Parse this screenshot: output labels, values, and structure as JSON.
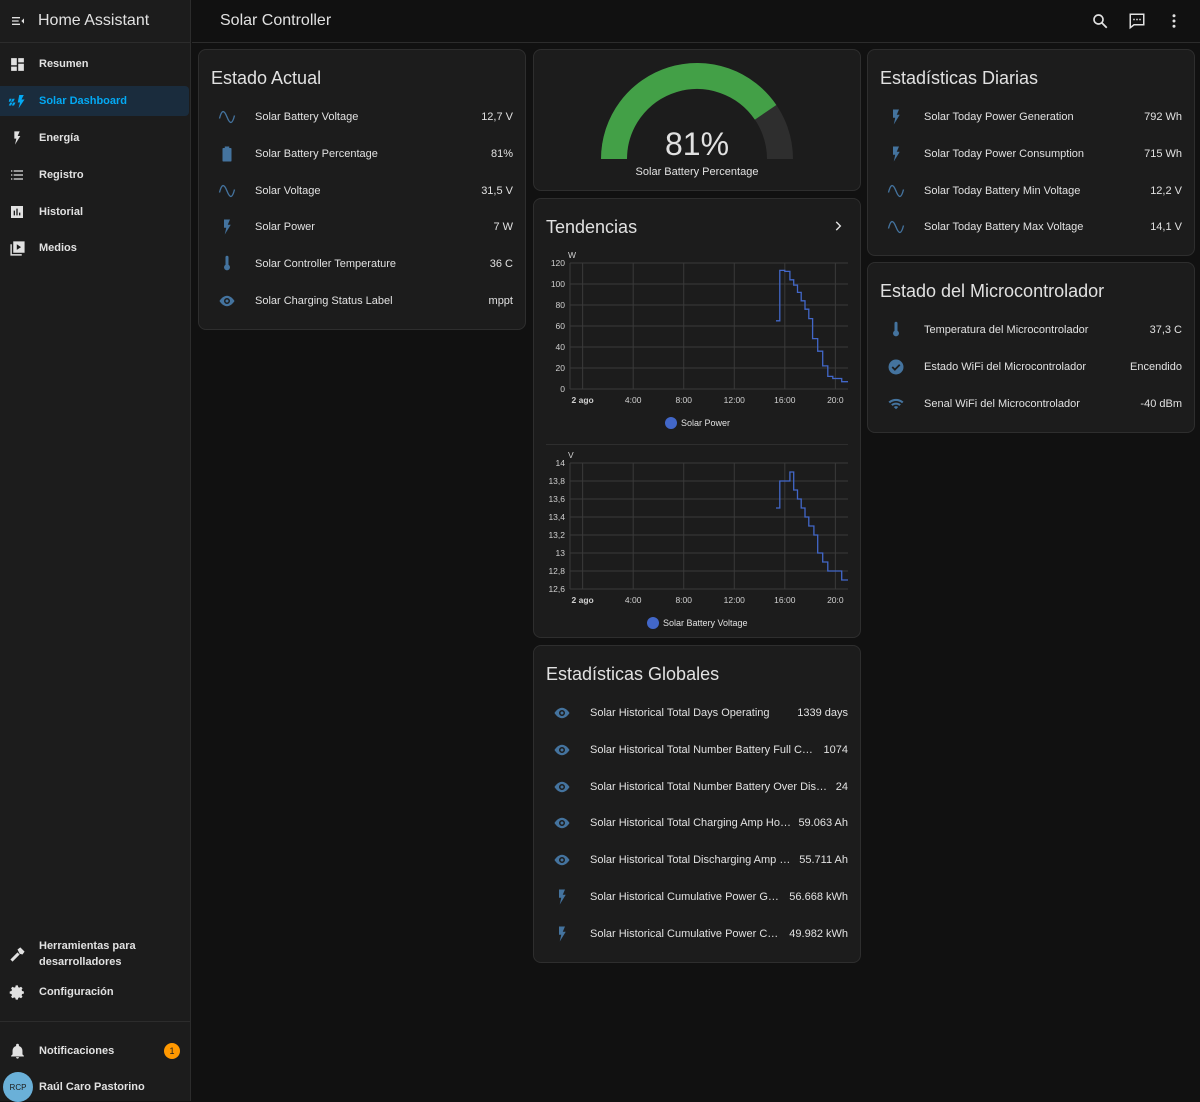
{
  "app": {
    "title": "Home Assistant"
  },
  "sidebar": {
    "items": [
      {
        "label": "Resumen",
        "icon": "dashboard-icon"
      },
      {
        "label": "Solar Dashboard",
        "icon": "solar-power-icon",
        "active": true
      },
      {
        "label": "Energía",
        "icon": "lightning-bolt-icon"
      },
      {
        "label": "Registro",
        "icon": "list-icon"
      },
      {
        "label": "Historial",
        "icon": "chart-box-icon"
      },
      {
        "label": "Medios",
        "icon": "play-box-icon"
      }
    ],
    "developer_tools": "Herramientas para desarrolladores",
    "settings": "Configuración",
    "notifications": {
      "label": "Notificaciones",
      "count": "1"
    },
    "user": {
      "initials": "RCP",
      "name": "Raúl Caro Pastorino"
    }
  },
  "header": {
    "title": "Solar Controller"
  },
  "estado_actual": {
    "title": "Estado Actual",
    "rows": [
      {
        "name": "Solar Battery Voltage",
        "value": "12,7 V",
        "icon": "sine-wave-icon"
      },
      {
        "name": "Solar Battery Percentage",
        "value": "81%",
        "icon": "battery-icon"
      },
      {
        "name": "Solar Voltage",
        "value": "31,5 V",
        "icon": "sine-wave-icon"
      },
      {
        "name": "Solar Power",
        "value": "7 W",
        "icon": "flash-icon"
      },
      {
        "name": "Solar Controller Temperature",
        "value": "36 C",
        "icon": "thermometer-icon"
      },
      {
        "name": "Solar Charging Status Label",
        "value": "mppt",
        "icon": "eye-icon"
      }
    ]
  },
  "gauge": {
    "value": 81,
    "value_label": "81%",
    "label": "Solar Battery Percentage",
    "color": "#43a047"
  },
  "tendencias": {
    "title": "Tendencias",
    "charts": [
      {
        "unit": "W",
        "yticks": [
          "0",
          "20",
          "40",
          "60",
          "80",
          "100",
          "120"
        ],
        "xticks": [
          "2 ago",
          "4:00",
          "8:00",
          "12:00",
          "16:00",
          "20:0"
        ],
        "legend": "Solar Power"
      },
      {
        "unit": "V",
        "yticks": [
          "12,6",
          "12,8",
          "13",
          "13,2",
          "13,4",
          "13,6",
          "13,8",
          "14"
        ],
        "xticks": [
          "2 ago",
          "4:00",
          "8:00",
          "12:00",
          "16:00",
          "20:0"
        ],
        "legend": "Solar Battery Voltage"
      }
    ]
  },
  "chart_data": [
    {
      "type": "line",
      "ylabel": "W",
      "ylim": [
        0,
        120
      ],
      "series": [
        {
          "name": "Solar Power",
          "color": "#4267c8",
          "x": [
            15.3,
            15.6,
            16.0,
            16.4,
            16.7,
            17.0,
            17.3,
            17.6,
            17.9,
            18.2,
            18.6,
            19.0,
            19.4,
            19.8,
            20.5
          ],
          "y": [
            65,
            113,
            112,
            104,
            99,
            92,
            84,
            76,
            67,
            48,
            36,
            22,
            12,
            10,
            7
          ]
        }
      ],
      "xticks": [
        "2 ago",
        "4:00",
        "8:00",
        "12:00",
        "16:00",
        "20:0"
      ]
    },
    {
      "type": "line",
      "ylabel": "V",
      "ylim": [
        12.6,
        14
      ],
      "series": [
        {
          "name": "Solar Battery Voltage",
          "color": "#4267c8",
          "x": [
            15.3,
            15.6,
            16.0,
            16.4,
            16.7,
            17.0,
            17.3,
            17.6,
            17.9,
            18.3,
            18.6,
            19.0,
            19.4,
            19.8,
            20.5
          ],
          "y": [
            13.5,
            13.8,
            13.8,
            13.9,
            13.7,
            13.6,
            13.5,
            13.4,
            13.3,
            13.2,
            13.0,
            12.9,
            12.8,
            12.8,
            12.7
          ]
        }
      ],
      "xticks": [
        "2 ago",
        "4:00",
        "8:00",
        "12:00",
        "16:00",
        "20:0"
      ]
    }
  ],
  "estadisticas_globales": {
    "title": "Estadísticas Globales",
    "rows": [
      {
        "name": "Solar Historical Total Days Operating",
        "value": "1339 days",
        "icon": "eye-icon"
      },
      {
        "name": "Solar Historical Total Number Battery Full Cha…",
        "value": "1074",
        "icon": "eye-icon"
      },
      {
        "name": "Solar Historical Total Number Battery Over Disch…",
        "value": "24",
        "icon": "eye-icon"
      },
      {
        "name": "Solar Historical Total Charging Amp Hours",
        "value": "59.063 Ah",
        "icon": "eye-icon"
      },
      {
        "name": "Solar Historical Total Discharging Amp H…",
        "value": "55.711 Ah",
        "icon": "eye-icon"
      },
      {
        "name": "Solar Historical Cumulative Power Gen…",
        "value": "56.668 kWh",
        "icon": "flash-icon"
      },
      {
        "name": "Solar Historical Cumulative Power Con…",
        "value": "49.982 kWh",
        "icon": "flash-icon"
      }
    ]
  },
  "estadisticas_diarias": {
    "title": "Estadísticas Diarias",
    "rows": [
      {
        "name": "Solar Today Power Generation",
        "value": "792 Wh",
        "icon": "flash-icon"
      },
      {
        "name": "Solar Today Power Consumption",
        "value": "715 Wh",
        "icon": "flash-icon"
      },
      {
        "name": "Solar Today Battery Min Voltage",
        "value": "12,2 V",
        "icon": "sine-wave-icon"
      },
      {
        "name": "Solar Today Battery Max Voltage",
        "value": "14,1 V",
        "icon": "sine-wave-icon"
      }
    ]
  },
  "microcontrolador": {
    "title": "Estado del Microcontrolador",
    "rows": [
      {
        "name": "Temperatura del Microcontrolador",
        "value": "37,3 C",
        "icon": "thermometer-icon"
      },
      {
        "name": "Estado WiFi del Microcontrolador",
        "value": "Encendido",
        "icon": "check-circle-icon"
      },
      {
        "name": "Senal WiFi del Microcontrolador",
        "value": "-40 dBm",
        "icon": "wifi-icon"
      }
    ]
  }
}
